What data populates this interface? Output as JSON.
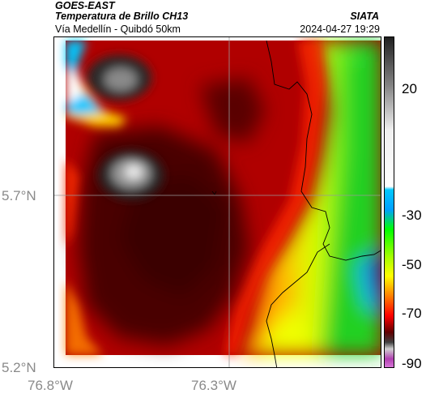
{
  "header": {
    "satellite": "GOES-EAST",
    "product": "Temperatura de Brillo CH13",
    "organization": "SIATA",
    "route": "Vía Medellín - Quibdó 50km",
    "timestamp": "2024-04-27 19:29"
  },
  "map": {
    "lat_labels": [
      "5.7°N",
      "5.2°N"
    ],
    "lon_labels": [
      "76.8°W",
      "76.3°W"
    ],
    "gridlines": true
  },
  "colorbar": {
    "tick_labels": [
      "20",
      "-30",
      "-50",
      "-70",
      "-90"
    ],
    "colors": [
      "#f4f4f4",
      "#222222",
      "#00c8ff",
      "#00ff00",
      "#ffff00",
      "#ff0000",
      "#4a0000",
      "#b030b0"
    ]
  }
}
